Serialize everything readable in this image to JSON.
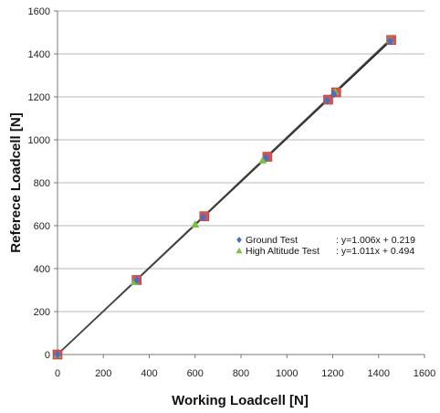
{
  "chart_data": {
    "type": "scatter",
    "xlabel": "Working Loadcell [N]",
    "ylabel": "Referece Loadcell [N]",
    "xlim": [
      0,
      1600
    ],
    "ylim": [
      0,
      1600
    ],
    "xticks": [
      0,
      200,
      400,
      600,
      800,
      1000,
      1200,
      1400,
      1600
    ],
    "yticks": [
      0,
      200,
      400,
      600,
      800,
      1000,
      1200,
      1400,
      1600
    ],
    "grid": "horizontal",
    "legend_position": "inside right",
    "series": [
      {
        "name": "Ground Test",
        "equation": ": y=1.006x + 0.219",
        "marker": "diamond",
        "color": "#4a6fc1",
        "x": [
          0,
          345,
          635,
          910,
          1175,
          1205,
          1450
        ],
        "y": [
          0,
          347,
          639,
          916,
          1183,
          1213,
          1459
        ]
      },
      {
        "name": "High Altitude Test",
        "equation": ": y=1.011x + 0.494",
        "marker": "triangle",
        "color": "#7bc043",
        "x": [
          0,
          335,
          600,
          895,
          1210,
          1450
        ],
        "y": [
          0,
          339,
          607,
          905,
          1224,
          1466
        ]
      },
      {
        "name": "",
        "marker": "square",
        "color": "#d9534f",
        "x": [
          0,
          345,
          640,
          915,
          1180,
          1215,
          1455
        ],
        "y": [
          0,
          347,
          644,
          921,
          1187,
          1221,
          1465
        ]
      }
    ],
    "trendlines": [
      {
        "slope": 1.006,
        "intercept": 0.219,
        "x_range": [
          0,
          1455
        ],
        "color": "#222222"
      },
      {
        "slope": 1.011,
        "intercept": 0.494,
        "x_range": [
          0,
          1450
        ],
        "color": "#444444"
      }
    ]
  }
}
